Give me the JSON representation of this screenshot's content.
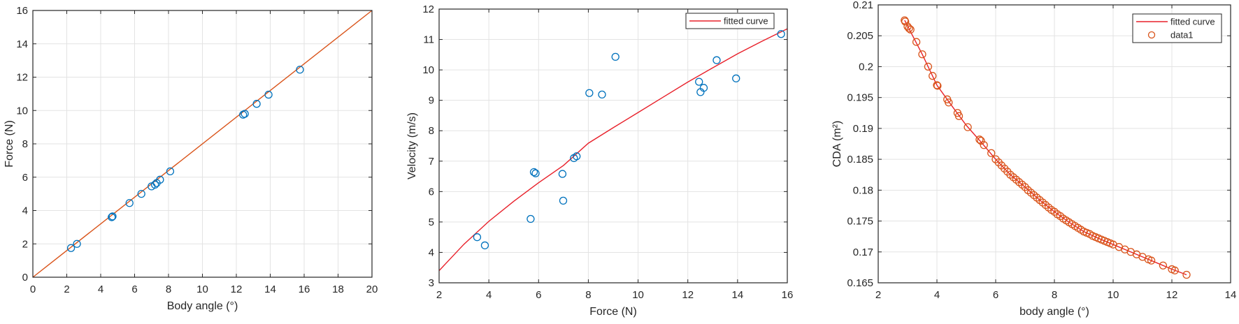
{
  "colors": {
    "axis": "#262626",
    "grid": "#e3e3e3",
    "blue": "#0072BD",
    "orange": "#D95319",
    "red": "#E8202A"
  },
  "chart_data": [
    {
      "type": "scatter",
      "xlabel": "Body angle (°)",
      "ylabel": "Force (N)",
      "xlim": [
        0,
        20
      ],
      "ylim": [
        0,
        16
      ],
      "xticks": [
        0,
        2,
        4,
        6,
        8,
        10,
        12,
        14,
        16,
        18,
        20
      ],
      "yticks": [
        0,
        2,
        4,
        6,
        8,
        10,
        12,
        14,
        16
      ],
      "grid": true,
      "legend": null,
      "points": {
        "color": "#0072BD",
        "x": [
          2.25,
          2.6,
          4.65,
          4.7,
          5.7,
          6.4,
          7.0,
          7.2,
          7.3,
          7.5,
          8.1,
          12.4,
          12.5,
          13.2,
          13.9,
          15.75
        ],
        "y": [
          1.75,
          2.0,
          3.6,
          3.65,
          4.45,
          5.0,
          5.45,
          5.55,
          5.65,
          5.85,
          6.35,
          9.75,
          9.8,
          10.4,
          10.95,
          12.45
        ]
      },
      "line": {
        "color": "#D95319",
        "x": [
          0,
          20
        ],
        "y": [
          0,
          16
        ]
      }
    },
    {
      "type": "scatter",
      "xlabel": "Force (N)",
      "ylabel": "Velocity (m/s)",
      "xlim": [
        2,
        16
      ],
      "ylim": [
        3,
        12
      ],
      "xticks": [
        2,
        4,
        6,
        8,
        10,
        12,
        14,
        16
      ],
      "yticks": [
        3,
        4,
        5,
        6,
        7,
        8,
        9,
        10,
        11,
        12
      ],
      "grid": true,
      "legend": {
        "placement": "top-right",
        "entries": [
          "fitted curve"
        ]
      },
      "points": {
        "color": "#0072BD",
        "x": [
          3.53,
          3.84,
          5.68,
          5.81,
          5.88,
          6.96,
          6.99,
          7.42,
          7.53,
          8.04,
          8.55,
          9.09,
          12.45,
          12.51,
          12.64,
          13.16,
          13.94,
          15.75
        ],
        "y": [
          4.5,
          4.23,
          5.1,
          6.64,
          6.6,
          6.58,
          5.7,
          7.1,
          7.16,
          9.24,
          9.19,
          10.43,
          9.61,
          9.27,
          9.41,
          10.32,
          9.72,
          11.18
        ]
      },
      "line": {
        "name": "fitted curve",
        "color": "#E8202A",
        "x": [
          2,
          3,
          4,
          5,
          6,
          7,
          8,
          9,
          10,
          11,
          12,
          13,
          14,
          15,
          16
        ],
        "y": [
          3.4,
          4.27,
          5.02,
          5.68,
          6.29,
          6.86,
          7.59,
          8.1,
          8.6,
          9.1,
          9.6,
          10.07,
          10.53,
          10.95,
          11.35
        ]
      }
    },
    {
      "type": "scatter",
      "xlabel": "body angle (°)",
      "ylabel": "CDA (m²)",
      "xlim": [
        2,
        14
      ],
      "ylim": [
        0.165,
        0.21
      ],
      "xticks": [
        2,
        4,
        6,
        8,
        10,
        12,
        14
      ],
      "yticks": [
        0.165,
        0.17,
        0.175,
        0.18,
        0.185,
        0.19,
        0.195,
        0.2,
        0.205,
        0.21
      ],
      "grid": true,
      "legend": {
        "placement": "top-right",
        "entries": [
          "fitted curve",
          "data1"
        ]
      },
      "points": {
        "name": "data1",
        "color": "#D95319",
        "x": [
          2.9,
          2.92,
          3.0,
          3.05,
          3.1,
          3.3,
          3.5,
          3.7,
          3.85,
          4.0,
          4.02,
          4.35,
          4.4,
          4.7,
          4.75,
          5.05,
          5.45,
          5.5,
          5.6,
          5.85,
          6.0,
          6.1,
          6.2,
          6.3,
          6.4,
          6.5,
          6.6,
          6.7,
          6.8,
          6.9,
          7.0,
          7.1,
          7.2,
          7.3,
          7.4,
          7.5,
          7.6,
          7.7,
          7.8,
          7.9,
          8.0,
          8.1,
          8.2,
          8.3,
          8.4,
          8.5,
          8.6,
          8.7,
          8.8,
          8.9,
          9.0,
          9.1,
          9.2,
          9.3,
          9.4,
          9.5,
          9.6,
          9.7,
          9.8,
          9.9,
          10.0,
          10.2,
          10.4,
          10.6,
          10.8,
          11.0,
          11.2,
          11.3,
          11.7,
          12.0,
          12.1,
          12.5
        ],
        "y": [
          0.2075,
          0.2073,
          0.2065,
          0.2062,
          0.206,
          0.204,
          0.202,
          0.2,
          0.1985,
          0.197,
          0.1969,
          0.1947,
          0.1942,
          0.1925,
          0.192,
          0.1902,
          0.1882,
          0.188,
          0.1873,
          0.186,
          0.185,
          0.1845,
          0.184,
          0.1835,
          0.183,
          0.1825,
          0.1821,
          0.1817,
          0.1813,
          0.1809,
          0.1805,
          0.18,
          0.1796,
          0.1792,
          0.1788,
          0.1784,
          0.178,
          0.1776,
          0.1772,
          0.1768,
          0.1765,
          0.1761,
          0.1758,
          0.1754,
          0.1751,
          0.1748,
          0.1745,
          0.1742,
          0.1739,
          0.1736,
          0.1733,
          0.1731,
          0.1729,
          0.1726,
          0.1724,
          0.1722,
          0.172,
          0.1718,
          0.1716,
          0.1714,
          0.1712,
          0.1708,
          0.1704,
          0.17,
          0.1696,
          0.1692,
          0.1688,
          0.1686,
          0.1678,
          0.1672,
          0.167,
          0.1663
        ]
      },
      "line": {
        "name": "fitted curve",
        "color": "#E8202A",
        "x": [
          2.9,
          3.5,
          4.0,
          4.5,
          5.0,
          5.5,
          6.0,
          6.5,
          7.0,
          7.5,
          8.0,
          8.5,
          9.0,
          9.5,
          10.0,
          10.5,
          11.0,
          11.5,
          12.0,
          12.5
        ],
        "y": [
          0.2075,
          0.202,
          0.197,
          0.1937,
          0.1905,
          0.1878,
          0.185,
          0.1825,
          0.1805,
          0.1784,
          0.1765,
          0.1748,
          0.1733,
          0.1722,
          0.1712,
          0.1702,
          0.1692,
          0.1682,
          0.1672,
          0.1663
        ]
      }
    }
  ]
}
